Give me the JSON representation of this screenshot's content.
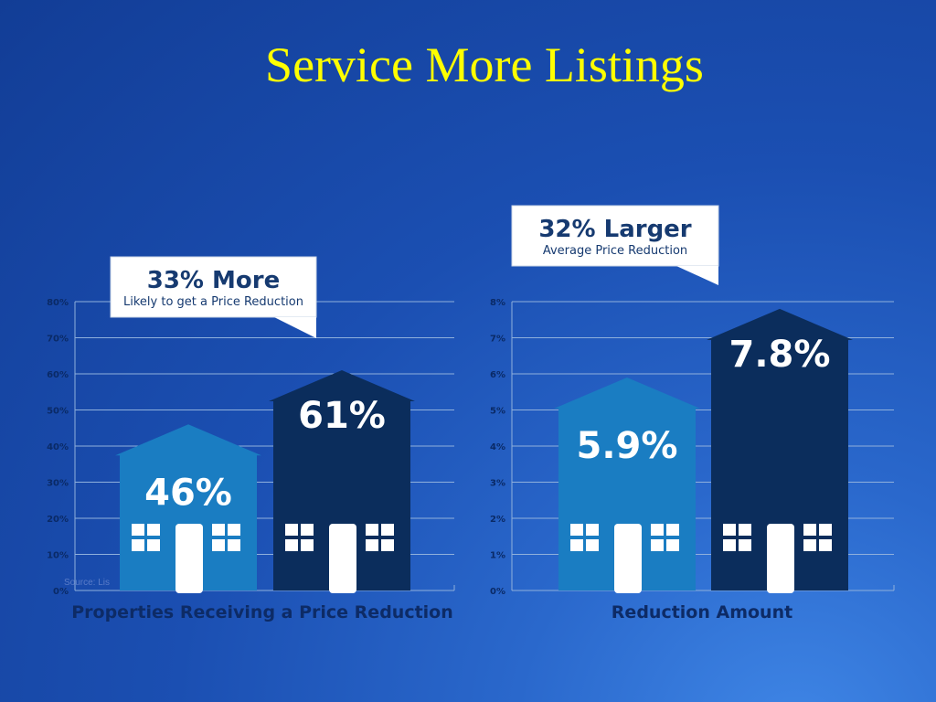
{
  "slide": {
    "title": "Service More Listings",
    "source_text": "Source: Lis"
  },
  "colors": {
    "title": "#ffff00",
    "bar_light": "#1a7dc2",
    "bar_dark": "#0b2d5c",
    "callout_bg": "#ffffff",
    "callout_text": "#163a70"
  },
  "chart_data": [
    {
      "type": "bar",
      "xlabel": "Properties Receiving a Price Reduction",
      "ylabel": "",
      "ylim": [
        0,
        80
      ],
      "yticks": [
        "0%",
        "10%",
        "20%",
        "30%",
        "40%",
        "50%",
        "60%",
        "70%",
        "80%"
      ],
      "ytick_values": [
        0,
        10,
        20,
        30,
        40,
        50,
        60,
        70,
        80
      ],
      "values": [
        46,
        61
      ],
      "value_labels": [
        "46%",
        "61%"
      ],
      "bar_colors": [
        "#1a7dc2",
        "#0b2d5c"
      ],
      "callout": {
        "headline": "33% More",
        "subtext": "Likely to get a Price Reduction"
      }
    },
    {
      "type": "bar",
      "xlabel": "Reduction Amount",
      "ylabel": "",
      "ylim": [
        0,
        8
      ],
      "yticks": [
        "0%",
        "1%",
        "2%",
        "3%",
        "4%",
        "5%",
        "6%",
        "7%",
        "8%"
      ],
      "ytick_values": [
        0,
        1,
        2,
        3,
        4,
        5,
        6,
        7,
        8
      ],
      "values": [
        5.9,
        7.8
      ],
      "value_labels": [
        "5.9%",
        "7.8%"
      ],
      "bar_colors": [
        "#1a7dc2",
        "#0b2d5c"
      ],
      "callout": {
        "headline": "32% Larger",
        "subtext": "Average Price Reduction"
      }
    }
  ]
}
